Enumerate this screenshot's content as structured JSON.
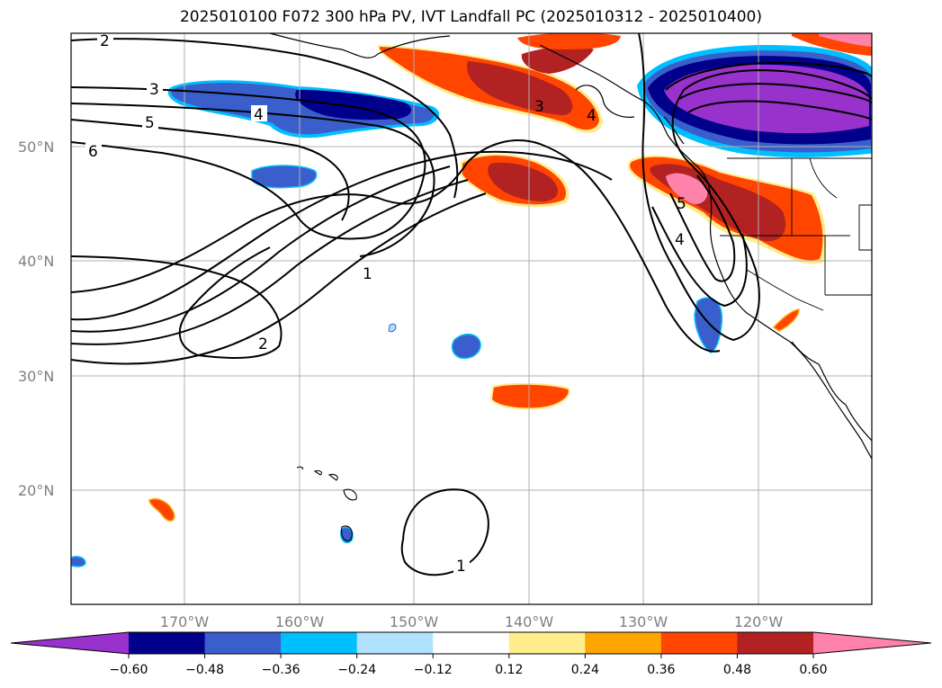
{
  "title": "2025010100 F072 300 hPa PV, IVT Landfall PC (2025010312 - 2025010400)",
  "lat_labels": [
    "50°N",
    "40°N",
    "30°N",
    "20°N"
  ],
  "lon_labels": [
    "170°W",
    "160°W",
    "150°W",
    "140°W",
    "130°W",
    "120°W"
  ],
  "contour_labels": [
    "2",
    "3",
    "4",
    "5",
    "6",
    "1",
    "2",
    "3",
    "4",
    "5",
    "4",
    "1"
  ],
  "colorbar": {
    "tick_labels": [
      "−0.60",
      "−0.48",
      "−0.36",
      "−0.24",
      "−0.12",
      "0.12",
      "0.24",
      "0.36",
      "0.48",
      "0.60"
    ],
    "colors": [
      "#9932cc",
      "#00008b",
      "#3a5fcd",
      "#00bfff",
      "#b0e2ff",
      "#ffffff",
      "#ffec8b",
      "#ffa500",
      "#ff4500",
      "#b22222",
      "#ff82ab"
    ]
  },
  "palette": {
    "neg_strong": "#9932cc",
    "neg_2": "#00008b",
    "neg_3": "#3a5fcd",
    "neg_4": "#00bfff",
    "pos_2": "#ffa500",
    "pos_3": "#ff4500",
    "pos_4": "#b22222",
    "pos_strong": "#ff82ab"
  }
}
